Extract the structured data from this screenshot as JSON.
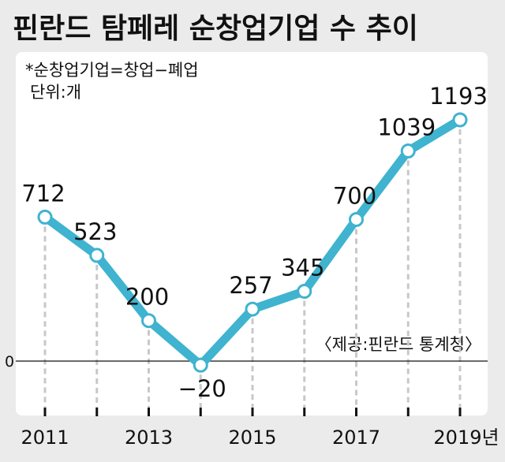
{
  "chart_data": {
    "type": "line",
    "title": "핀란드 탐페레 순창업기업 수 추이",
    "note": "*순창업기업=창업−폐업",
    "unit": "단위:개",
    "source": "〈제공:핀란드 통계청〉",
    "x": [
      2011,
      2012,
      2013,
      2014,
      2015,
      2016,
      2017,
      2018,
      2019
    ],
    "values": [
      712,
      523,
      200,
      -20,
      257,
      345,
      700,
      1039,
      1193
    ],
    "value_labels": [
      "712",
      "523",
      "200",
      "−20",
      "257",
      "345",
      "700",
      "1039",
      "1193"
    ],
    "x_tick_labels": [
      {
        "x": 2011,
        "label": "2011"
      },
      {
        "x": 2013,
        "label": "2013"
      },
      {
        "x": 2015,
        "label": "2015"
      },
      {
        "x": 2017,
        "label": "2017"
      },
      {
        "x": 2019,
        "label": "2019년"
      }
    ],
    "y_tick_labels": [
      {
        "y": 0,
        "label": "0"
      }
    ],
    "ylim": [
      -270,
      1550
    ],
    "line_color": "#3fb3cf",
    "grid": false
  }
}
